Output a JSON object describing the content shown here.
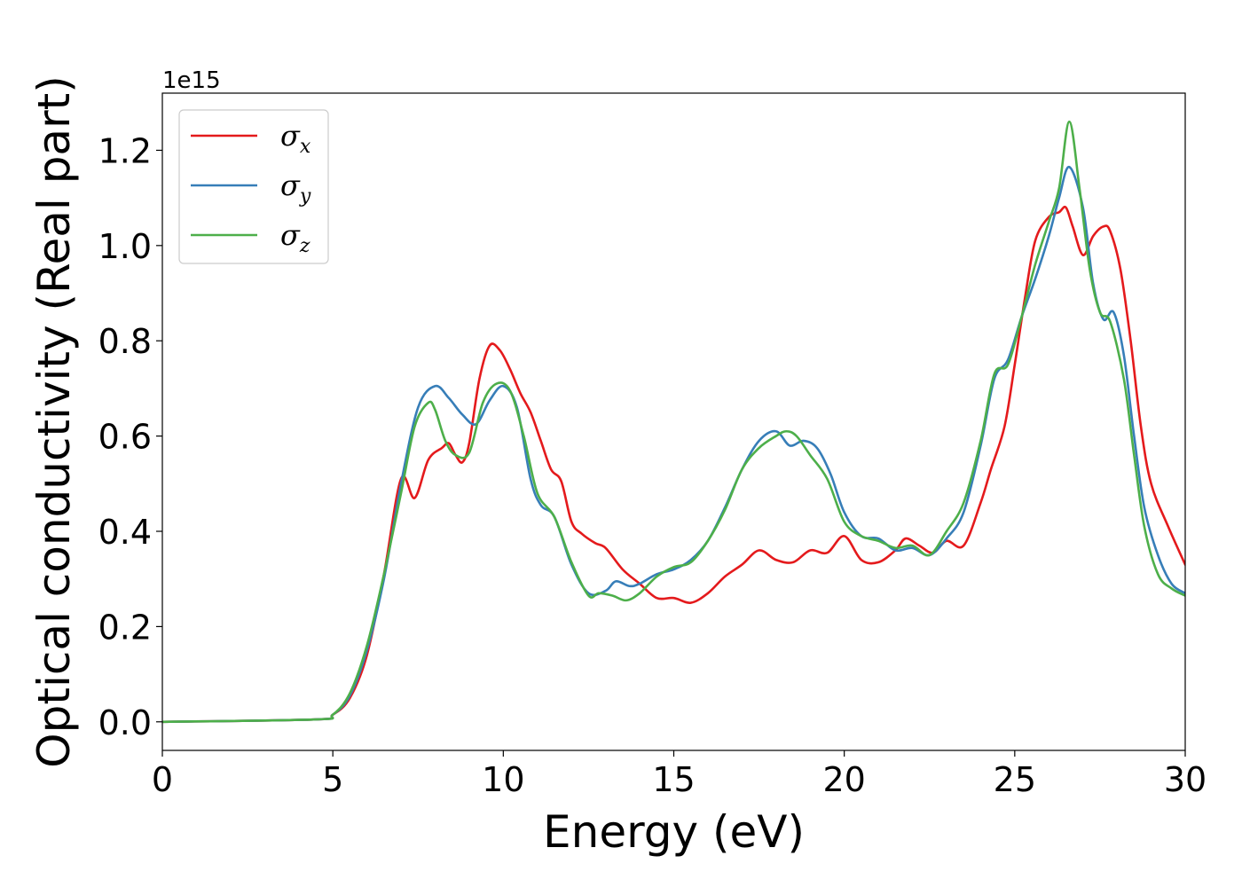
{
  "chart_data": {
    "type": "line",
    "title": "",
    "xlabel": "Energy (eV)",
    "ylabel": "Optical conductivity (Real part)",
    "y_offset_label": "1e15",
    "xlim": [
      0,
      30
    ],
    "ylim": [
      -0.06,
      1.32
    ],
    "x_ticks": [
      0,
      5,
      10,
      15,
      20,
      25,
      30
    ],
    "x_tick_labels": [
      "0",
      "5",
      "10",
      "15",
      "20",
      "25",
      "30"
    ],
    "y_ticks": [
      0.0,
      0.2,
      0.4,
      0.6,
      0.8,
      1.0,
      1.2
    ],
    "y_tick_labels": [
      "0.0",
      "0.2",
      "0.4",
      "0.6",
      "0.8",
      "1.0",
      "1.2"
    ],
    "grid": false,
    "legend_position": "top-left",
    "series": [
      {
        "name": "σx",
        "symbol": "σ",
        "subscript": "x",
        "color": "#e41a1c",
        "x": [
          0,
          4.5,
          5,
          5.5,
          6,
          6.5,
          7,
          7.4,
          7.8,
          8.2,
          8.4,
          8.6,
          8.8,
          9.0,
          9.3,
          9.6,
          9.9,
          10.2,
          10.5,
          10.8,
          11.1,
          11.4,
          11.7,
          12.0,
          12.3,
          12.7,
          13.0,
          13.5,
          14.0,
          14.5,
          15.0,
          15.5,
          16.0,
          16.5,
          17.0,
          17.5,
          18.0,
          18.5,
          19.0,
          19.5,
          20.0,
          20.5,
          21.0,
          21.5,
          21.8,
          22.2,
          22.6,
          23.0,
          23.5,
          24.0,
          24.3,
          24.7,
          25.0,
          25.3,
          25.6,
          26.0,
          26.3,
          26.5,
          26.7,
          27.0,
          27.3,
          27.6,
          27.8,
          28.1,
          28.4,
          28.7,
          29.0,
          29.5,
          30.0
        ],
        "y": [
          0.0,
          0.005,
          0.015,
          0.05,
          0.14,
          0.31,
          0.51,
          0.47,
          0.55,
          0.575,
          0.585,
          0.56,
          0.545,
          0.585,
          0.72,
          0.79,
          0.78,
          0.74,
          0.69,
          0.65,
          0.59,
          0.53,
          0.505,
          0.42,
          0.395,
          0.375,
          0.365,
          0.32,
          0.29,
          0.26,
          0.26,
          0.25,
          0.27,
          0.305,
          0.33,
          0.36,
          0.34,
          0.335,
          0.36,
          0.355,
          0.39,
          0.34,
          0.335,
          0.36,
          0.385,
          0.37,
          0.355,
          0.38,
          0.37,
          0.46,
          0.53,
          0.62,
          0.75,
          0.89,
          1.01,
          1.06,
          1.07,
          1.08,
          1.04,
          0.98,
          1.02,
          1.04,
          1.03,
          0.95,
          0.8,
          0.62,
          0.5,
          0.41,
          0.33
        ]
      },
      {
        "name": "σy",
        "symbol": "σ",
        "subscript": "y",
        "color": "#377eb8",
        "x": [
          0,
          4.5,
          5,
          5.5,
          6,
          6.5,
          7,
          7.5,
          8.0,
          8.4,
          8.8,
          9.2,
          9.6,
          10.0,
          10.4,
          10.8,
          11.1,
          11.5,
          12.0,
          12.5,
          13.0,
          13.3,
          13.7,
          14.0,
          14.5,
          15.0,
          15.5,
          16.0,
          16.5,
          17.0,
          17.5,
          18.0,
          18.4,
          18.8,
          19.2,
          19.6,
          20.0,
          20.5,
          21.0,
          21.5,
          22.0,
          22.5,
          23.0,
          23.5,
          24.0,
          24.4,
          24.8,
          25.2,
          25.6,
          26.0,
          26.3,
          26.6,
          27.0,
          27.3,
          27.6,
          27.9,
          28.2,
          28.5,
          28.8,
          29.2,
          29.6,
          30.0
        ],
        "y": [
          0.0,
          0.005,
          0.015,
          0.055,
          0.15,
          0.3,
          0.5,
          0.66,
          0.705,
          0.68,
          0.645,
          0.625,
          0.675,
          0.705,
          0.66,
          0.51,
          0.455,
          0.43,
          0.33,
          0.27,
          0.275,
          0.295,
          0.285,
          0.29,
          0.31,
          0.32,
          0.34,
          0.38,
          0.45,
          0.53,
          0.59,
          0.61,
          0.58,
          0.59,
          0.575,
          0.52,
          0.44,
          0.39,
          0.385,
          0.36,
          0.365,
          0.35,
          0.385,
          0.44,
          0.58,
          0.72,
          0.76,
          0.85,
          0.93,
          1.02,
          1.1,
          1.165,
          1.08,
          0.92,
          0.845,
          0.86,
          0.77,
          0.6,
          0.45,
          0.35,
          0.29,
          0.27
        ]
      },
      {
        "name": "σz",
        "symbol": "σ",
        "subscript": "z",
        "color": "#4daf4a",
        "x": [
          0,
          4.5,
          5,
          5.5,
          6,
          6.5,
          7,
          7.4,
          7.8,
          8.0,
          8.3,
          8.6,
          9.0,
          9.4,
          9.8,
          10.2,
          10.6,
          11.0,
          11.5,
          12.0,
          12.5,
          12.8,
          13.2,
          13.6,
          14.0,
          14.5,
          15.0,
          15.5,
          16.0,
          16.5,
          17.0,
          17.5,
          18.0,
          18.3,
          18.6,
          19.0,
          19.5,
          20.0,
          20.5,
          21.0,
          21.5,
          22.0,
          22.5,
          23.0,
          23.5,
          24.0,
          24.4,
          24.8,
          25.2,
          25.6,
          26.0,
          26.3,
          26.6,
          26.9,
          27.2,
          27.5,
          27.8,
          28.2,
          28.5,
          28.8,
          29.2,
          29.6,
          30.0
        ],
        "y": [
          0.0,
          0.005,
          0.015,
          0.06,
          0.16,
          0.31,
          0.48,
          0.62,
          0.67,
          0.655,
          0.59,
          0.56,
          0.565,
          0.67,
          0.71,
          0.695,
          0.6,
          0.48,
          0.43,
          0.335,
          0.265,
          0.27,
          0.265,
          0.255,
          0.27,
          0.305,
          0.325,
          0.335,
          0.38,
          0.445,
          0.53,
          0.575,
          0.6,
          0.61,
          0.6,
          0.56,
          0.51,
          0.42,
          0.39,
          0.38,
          0.365,
          0.37,
          0.35,
          0.4,
          0.46,
          0.59,
          0.73,
          0.75,
          0.85,
          0.96,
          1.05,
          1.12,
          1.26,
          1.12,
          0.95,
          0.86,
          0.84,
          0.72,
          0.56,
          0.41,
          0.31,
          0.28,
          0.265
        ]
      }
    ]
  }
}
